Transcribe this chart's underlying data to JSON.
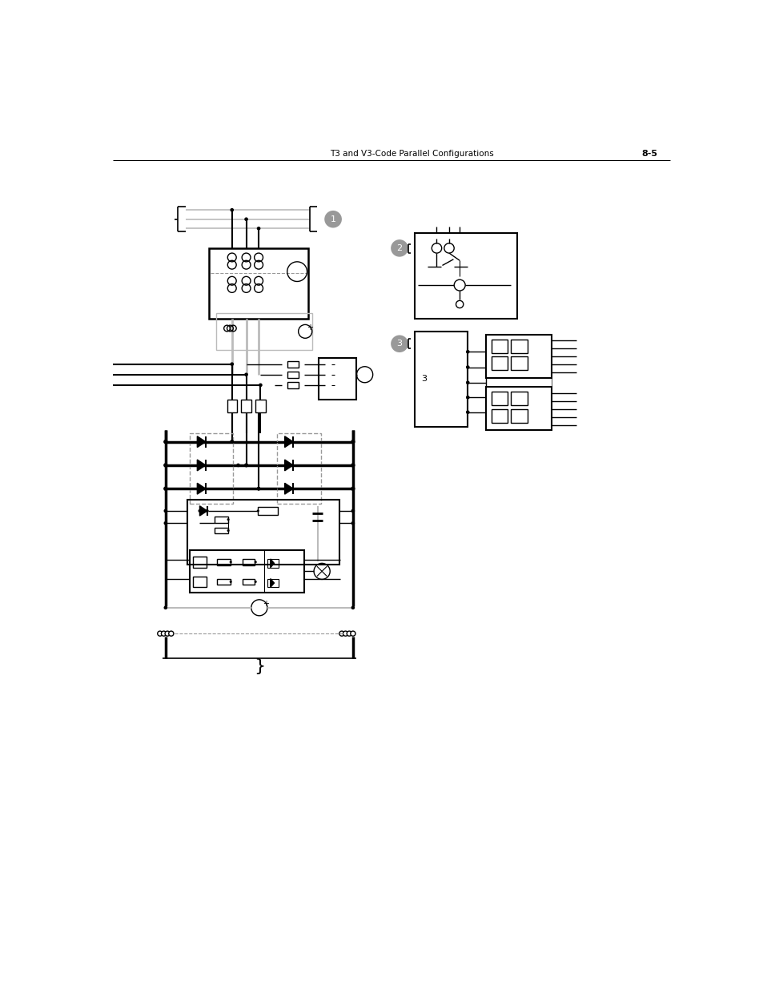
{
  "title": "T3 and V3-Code Parallel Configurations",
  "page": "8-5",
  "title_fontsize": 8,
  "page_fontsize": 9,
  "bg_color": "#ffffff",
  "line_color": "#000000",
  "gray_line_color": "#bbbbbb",
  "dashed_color": "#999999",
  "circle_gray": "#999999",
  "fig_width": 9.54,
  "fig_height": 12.35
}
